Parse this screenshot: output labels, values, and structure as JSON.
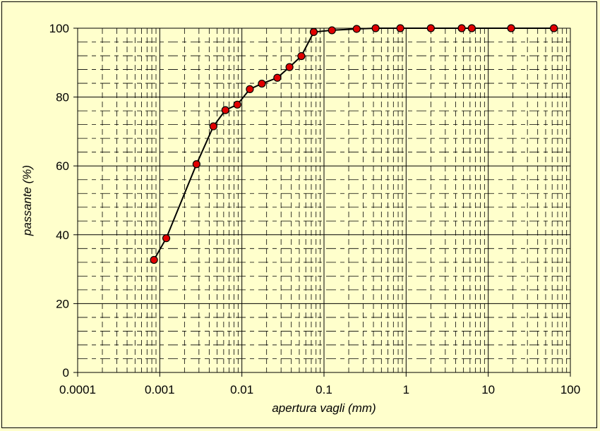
{
  "chart_data": {
    "type": "scatter",
    "xscale": "log",
    "xlabel": "apertura vagli (mm)",
    "ylabel": "passante (%)",
    "xlim": [
      0.0001,
      100
    ],
    "ylim": [
      0,
      100
    ],
    "x_ticks": [
      "0.0001",
      "0.001",
      "0.01",
      "0.1",
      "1",
      "10",
      "100"
    ],
    "y_ticks": [
      "0",
      "20",
      "40",
      "60",
      "80",
      "100"
    ],
    "grid": true,
    "colors": {
      "background": "#ffffcc",
      "marker": "#e00000",
      "line": "#000000"
    },
    "series": [
      {
        "points": [
          {
            "x": 0.00085,
            "y": 32.7
          },
          {
            "x": 0.0012,
            "y": 39.0
          },
          {
            "x": 0.0028,
            "y": 60.5
          },
          {
            "x": 0.0045,
            "y": 71.5
          },
          {
            "x": 0.0063,
            "y": 76.2
          },
          {
            "x": 0.0088,
            "y": 77.8
          },
          {
            "x": 0.0125,
            "y": 82.3
          },
          {
            "x": 0.0175,
            "y": 83.9
          },
          {
            "x": 0.027,
            "y": 85.6
          },
          {
            "x": 0.038,
            "y": 88.7
          },
          {
            "x": 0.053,
            "y": 91.9
          },
          {
            "x": 0.075,
            "y": 98.9
          },
          {
            "x": 0.125,
            "y": 99.4
          },
          {
            "x": 0.25,
            "y": 99.8
          },
          {
            "x": 0.425,
            "y": 100
          },
          {
            "x": 0.85,
            "y": 100
          },
          {
            "x": 2.0,
            "y": 100
          },
          {
            "x": 4.75,
            "y": 100
          },
          {
            "x": 6.3,
            "y": 100
          },
          {
            "x": 19.0,
            "y": 100
          },
          {
            "x": 63.0,
            "y": 100
          }
        ]
      }
    ]
  }
}
